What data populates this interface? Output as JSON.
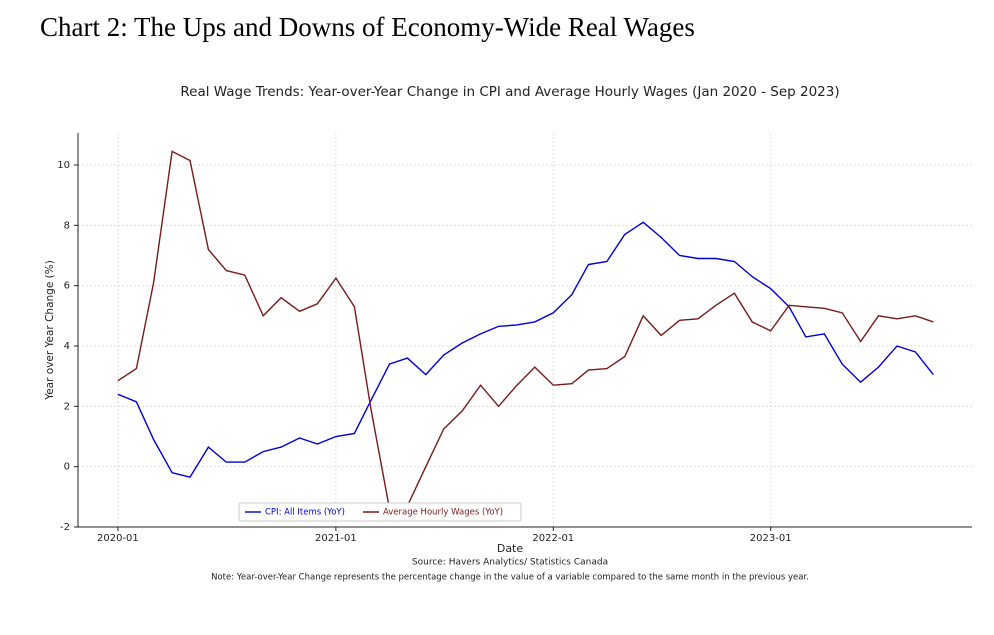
{
  "header": {
    "title": "Chart 2: The Ups and Downs of Economy-Wide Real Wages"
  },
  "chart_data": {
    "type": "line",
    "title": "Real Wage Trends: Year-over-Year Change in CPI and Average Hourly Wages (Jan 2020 - Sep 2023)",
    "x_label": "Date",
    "y_label": "Year over Year Change (%)",
    "source": "Source: Havers Analytics/ Statistics Canada",
    "note": "Note: Year-over-Year Change represents the percentage change in the value of a variable compared to the same month in the previous year.",
    "x": [
      "2020-01",
      "2020-02",
      "2020-03",
      "2020-04",
      "2020-05",
      "2020-06",
      "2020-07",
      "2020-08",
      "2020-09",
      "2020-10",
      "2020-11",
      "2020-12",
      "2021-01",
      "2021-02",
      "2021-03",
      "2021-04",
      "2021-05",
      "2021-06",
      "2021-07",
      "2021-08",
      "2021-09",
      "2021-10",
      "2021-11",
      "2021-12",
      "2022-01",
      "2022-02",
      "2022-03",
      "2022-04",
      "2022-05",
      "2022-06",
      "2022-07",
      "2022-08",
      "2022-09",
      "2022-10",
      "2022-11",
      "2022-12",
      "2023-01",
      "2023-02",
      "2023-03",
      "2023-04",
      "2023-05",
      "2023-06",
      "2023-07",
      "2023-08",
      "2023-09",
      "2023-10"
    ],
    "series": [
      {
        "name": "CPI: All Items (YoY)",
        "color": "#0000dd",
        "values": [
          2.4,
          2.15,
          0.9,
          -0.2,
          -0.35,
          0.65,
          0.15,
          0.15,
          0.5,
          0.65,
          0.95,
          0.75,
          1.0,
          1.1,
          2.2,
          3.4,
          3.6,
          3.05,
          3.7,
          4.1,
          4.4,
          4.65,
          4.7,
          4.8,
          5.1,
          5.7,
          6.7,
          6.8,
          7.7,
          8.1,
          7.6,
          7.0,
          6.9,
          6.9,
          6.8,
          6.3,
          5.9,
          5.3,
          4.3,
          4.4,
          3.4,
          2.8,
          3.3,
          4.0,
          3.8,
          3.05
        ]
      },
      {
        "name": "Average Hourly Wages (YoY)",
        "color": "#7b1a1a",
        "values": [
          2.85,
          3.25,
          6.1,
          10.45,
          10.15,
          7.2,
          6.5,
          6.35,
          5.0,
          5.6,
          5.15,
          5.4,
          6.25,
          5.3,
          1.9,
          -1.4,
          -1.3,
          0.0,
          1.25,
          1.85,
          2.7,
          2.0,
          2.7,
          3.3,
          2.7,
          2.75,
          3.2,
          3.25,
          3.65,
          5.0,
          4.35,
          4.85,
          4.9,
          5.35,
          5.75,
          4.8,
          4.5,
          5.35,
          5.3,
          5.25,
          5.1,
          4.15,
          5.0,
          4.9,
          5.0,
          4.8
        ]
      }
    ],
    "xlim": [
      "2019-10-26",
      "2023-12-05"
    ],
    "xticks": [
      "2020-01",
      "2021-01",
      "2022-01",
      "2023-01"
    ],
    "ylim": [
      -2,
      11.06
    ],
    "yticks": [
      -2,
      0,
      2,
      4,
      6,
      8,
      10
    ],
    "grid": true,
    "legend": "lower center"
  }
}
